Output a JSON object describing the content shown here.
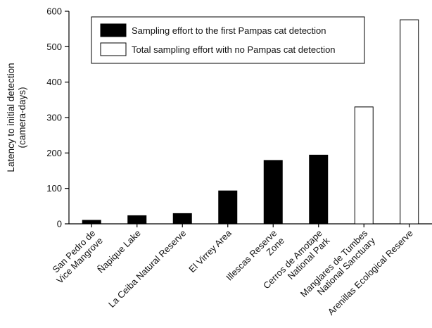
{
  "chart_data": {
    "type": "bar",
    "title": "",
    "ylabel_line1": "Latency to initial detection",
    "ylabel_line2": "(camera-days)",
    "ylim": [
      0,
      600
    ],
    "yticks": [
      0,
      100,
      200,
      300,
      400,
      500,
      600
    ],
    "categories": [
      [
        "San Pedro de",
        "Vice Mangrove"
      ],
      [
        "Ñapique Lake"
      ],
      [
        "La Ceiba Natural Reserve"
      ],
      [
        "El Virrey Area"
      ],
      [
        "Illescas Reserve",
        "Zone"
      ],
      [
        "Cerros de Amotape",
        "National Park"
      ],
      [
        "Manglares de Tumbes",
        "National Sanctuary"
      ],
      [
        "Arenillas Ecological Reserve"
      ]
    ],
    "values": [
      10,
      23,
      29,
      93,
      179,
      194,
      330,
      576
    ],
    "fills": [
      "#000000",
      "#000000",
      "#000000",
      "#000000",
      "#000000",
      "#000000",
      "#ffffff",
      "#ffffff"
    ],
    "legend": {
      "placement": "top-left",
      "items": [
        {
          "label": "Sampling effort to the first Pampas cat detection",
          "fill": "#000000"
        },
        {
          "label": "Total sampling effort with no Pampas cat detection",
          "fill": "#ffffff"
        }
      ]
    },
    "grid": false
  }
}
